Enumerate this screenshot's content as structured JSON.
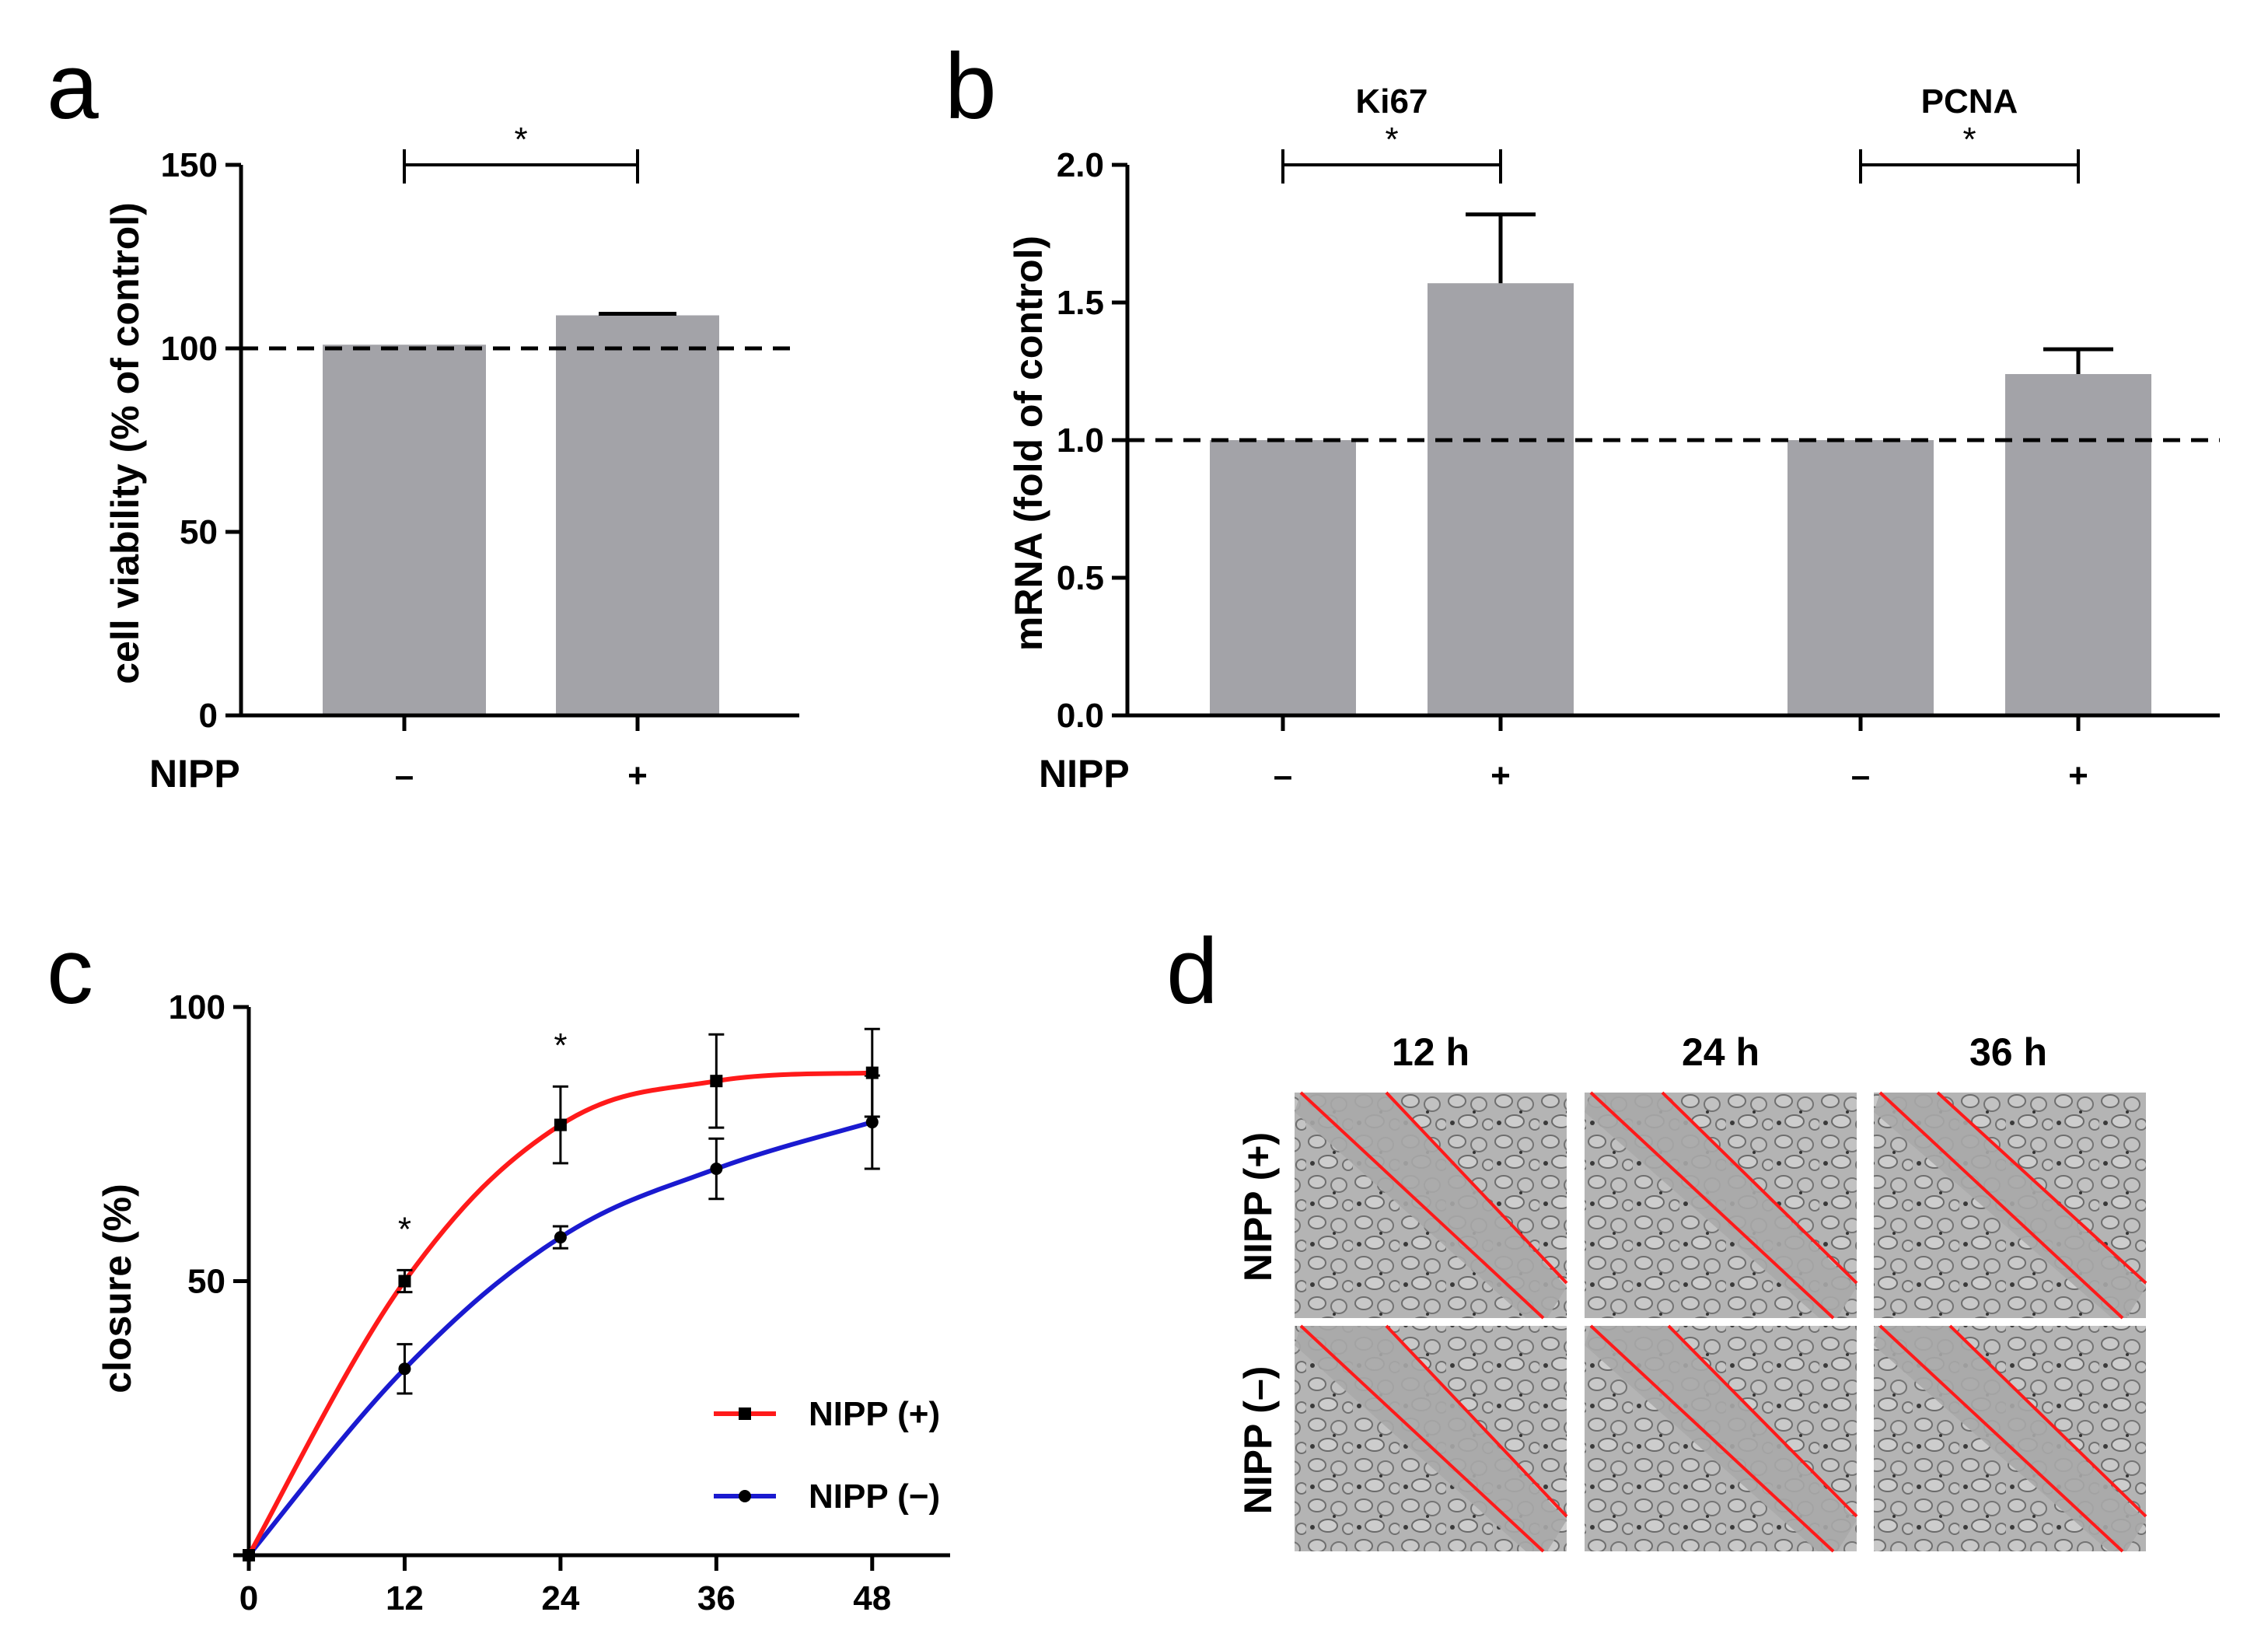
{
  "panel_labels": {
    "a": "a",
    "b": "b",
    "c": "c",
    "d": "d"
  },
  "colors": {
    "bar": "#a3a3a8",
    "red": "#ff1a1a",
    "blue": "#1a1ad0",
    "wound_bg": "#a9a9a9"
  },
  "chart_data": [
    {
      "id": "a",
      "type": "bar",
      "title": "",
      "ylabel": "cell viability (% of control)",
      "xlabel": "",
      "row_label": "NIPP",
      "categories": [
        "–",
        "+"
      ],
      "values": [
        101,
        109
      ],
      "errors": [
        0,
        0
      ],
      "ylim": [
        0,
        150
      ],
      "yticks": [
        "0",
        "50",
        "100",
        "150"
      ],
      "reference_line": 100,
      "significance": [
        {
          "from": 0,
          "to": 1,
          "label": "*"
        }
      ]
    },
    {
      "id": "b",
      "type": "bar",
      "title": "",
      "ylabel": "mRNA (fold of control)",
      "xlabel": "",
      "row_label": "NIPP",
      "groups": [
        {
          "name": "Ki67",
          "categories": [
            "–",
            "+"
          ],
          "values": [
            1.0,
            1.57
          ],
          "errors": [
            0,
            0.25
          ],
          "significance": "*"
        },
        {
          "name": "PCNA",
          "categories": [
            "–",
            "+"
          ],
          "values": [
            1.0,
            1.24
          ],
          "errors": [
            0,
            0.09
          ],
          "significance": "*"
        }
      ],
      "ylim": [
        0,
        2.0
      ],
      "yticks": [
        "0.0",
        "0.5",
        "1.0",
        "1.5",
        "2.0"
      ],
      "reference_line": 1.0
    },
    {
      "id": "c",
      "type": "line",
      "title": "",
      "ylabel": "closure (%)",
      "xlabel": "",
      "x": [
        0,
        12,
        24,
        36,
        48
      ],
      "xticks": [
        "0",
        "12",
        "24",
        "36",
        "48"
      ],
      "ylim": [
        0,
        100
      ],
      "yticks": [
        "50",
        "100"
      ],
      "series": [
        {
          "name": "NIPP (+)",
          "color": "#ff1a1a",
          "marker": "square",
          "values": [
            0,
            50,
            78.5,
            86.5,
            88
          ],
          "errors": [
            0,
            2,
            7,
            8.5,
            8
          ]
        },
        {
          "name": "NIPP (−)",
          "color": "#1a1ad0",
          "marker": "circle",
          "values": [
            0,
            34,
            58,
            70.5,
            79
          ],
          "errors": [
            0,
            4.5,
            2,
            5.5,
            8.5
          ]
        }
      ],
      "significance": [
        {
          "x": 12,
          "label": "*"
        },
        {
          "x": 24,
          "label": "*"
        }
      ],
      "legend": "bottom-right"
    }
  ],
  "micrographs": {
    "col_labels": [
      "12 h",
      "24 h",
      "36 h"
    ],
    "row_labels": [
      "NIPP (+)",
      "NIPP (–)"
    ]
  }
}
